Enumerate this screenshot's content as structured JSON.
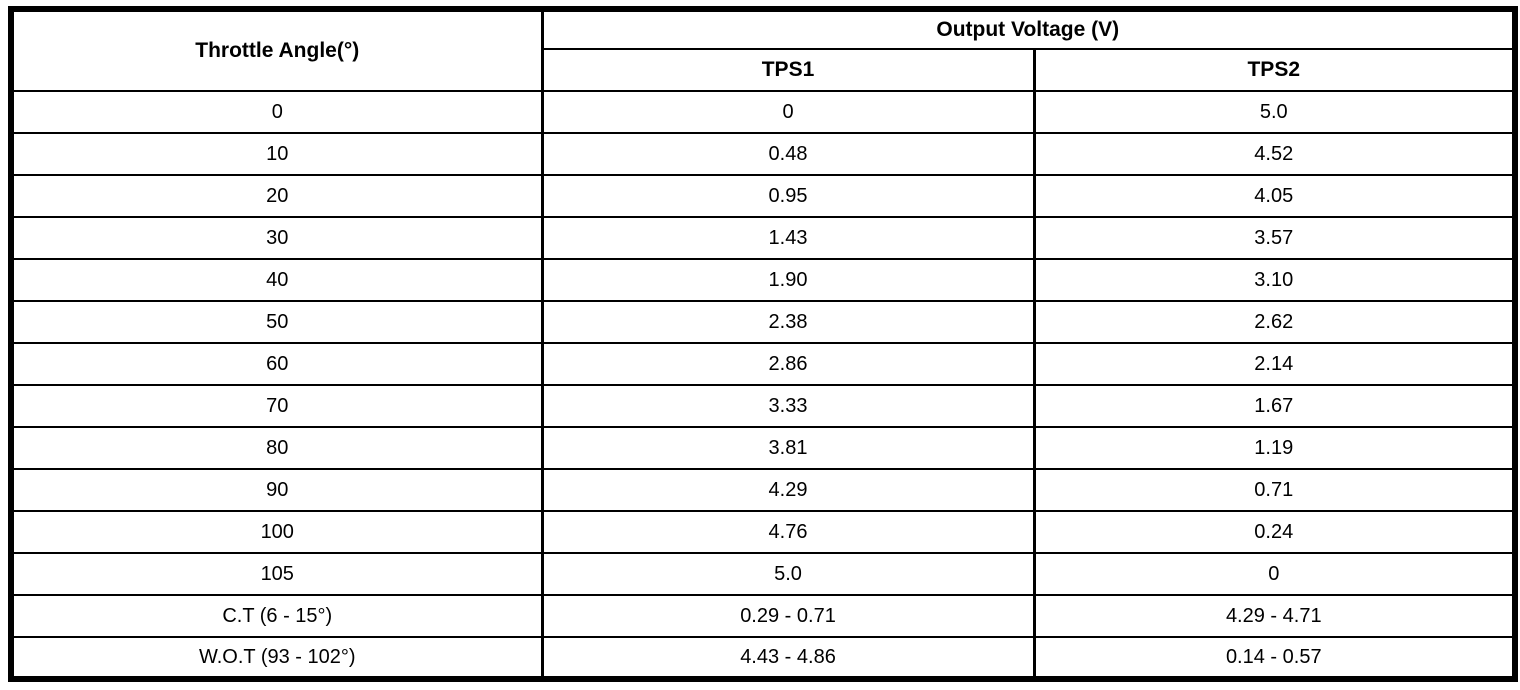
{
  "table": {
    "angle_header": "Throttle Angle(°)",
    "group_header": "Output Voltage (V)",
    "sub_headers": [
      "TPS1",
      "TPS2"
    ],
    "rows": [
      {
        "angle": "0",
        "tps1": "0",
        "tps2": "5.0"
      },
      {
        "angle": "10",
        "tps1": "0.48",
        "tps2": "4.52"
      },
      {
        "angle": "20",
        "tps1": "0.95",
        "tps2": "4.05"
      },
      {
        "angle": "30",
        "tps1": "1.43",
        "tps2": "3.57"
      },
      {
        "angle": "40",
        "tps1": "1.90",
        "tps2": "3.10"
      },
      {
        "angle": "50",
        "tps1": "2.38",
        "tps2": "2.62"
      },
      {
        "angle": "60",
        "tps1": "2.86",
        "tps2": "2.14"
      },
      {
        "angle": "70",
        "tps1": "3.33",
        "tps2": "1.67"
      },
      {
        "angle": "80",
        "tps1": "3.81",
        "tps2": "1.19"
      },
      {
        "angle": "90",
        "tps1": "4.29",
        "tps2": "0.71"
      },
      {
        "angle": "100",
        "tps1": "4.76",
        "tps2": "0.24"
      },
      {
        "angle": "105",
        "tps1": "5.0",
        "tps2": "0"
      },
      {
        "angle": "C.T (6 - 15°)",
        "tps1": "0.29 - 0.71",
        "tps2": "4.29 - 4.71"
      },
      {
        "angle": "W.O.T (93 - 102°)",
        "tps1": "4.43 - 4.86",
        "tps2": "0.14 - 0.57"
      }
    ]
  },
  "colors": {
    "border": "#000000",
    "background": "#ffffff",
    "text": "#000000"
  },
  "chart_data": {
    "type": "table",
    "title": "Output Voltage (V)",
    "columns": [
      "Throttle Angle(°)",
      "TPS1",
      "TPS2"
    ],
    "rows": [
      [
        "0",
        "0",
        "5.0"
      ],
      [
        "10",
        "0.48",
        "4.52"
      ],
      [
        "20",
        "0.95",
        "4.05"
      ],
      [
        "30",
        "1.43",
        "3.57"
      ],
      [
        "40",
        "1.90",
        "3.10"
      ],
      [
        "50",
        "2.38",
        "2.62"
      ],
      [
        "60",
        "2.86",
        "2.14"
      ],
      [
        "70",
        "3.33",
        "1.67"
      ],
      [
        "80",
        "3.81",
        "1.19"
      ],
      [
        "90",
        "4.29",
        "0.71"
      ],
      [
        "100",
        "4.76",
        "0.24"
      ],
      [
        "105",
        "5.0",
        "0"
      ],
      [
        "C.T (6 - 15°)",
        "0.29 - 0.71",
        "4.29 - 4.71"
      ],
      [
        "W.O.T (93 - 102°)",
        "4.43 - 4.86",
        "0.14 - 0.57"
      ]
    ]
  }
}
